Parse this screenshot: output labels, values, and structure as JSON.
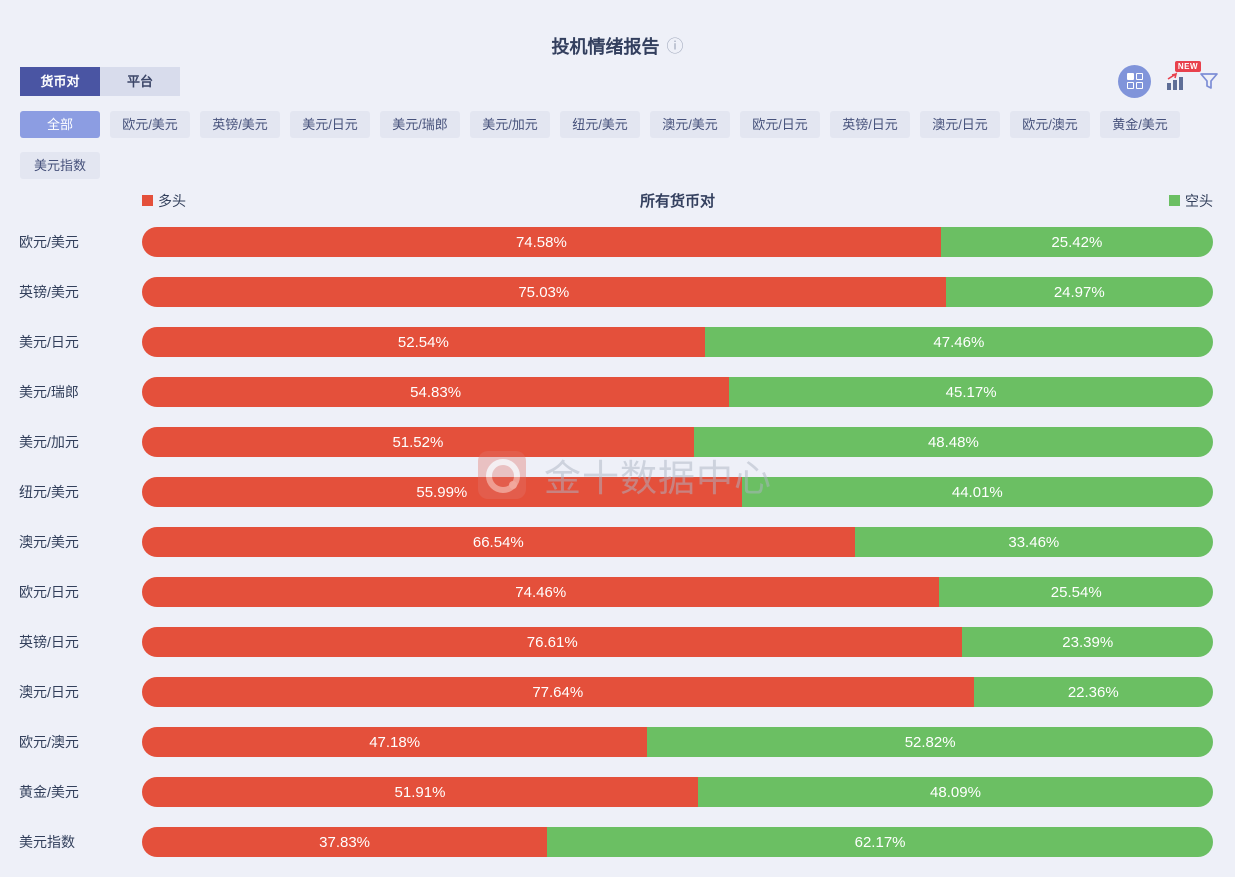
{
  "page": {
    "background": "#eef0f8"
  },
  "header": {
    "title": "投机情绪报告",
    "info_icon": "ⓘ"
  },
  "tabs": [
    {
      "label": "货币对",
      "active": true
    },
    {
      "label": "平台",
      "active": false
    }
  ],
  "toolbar": {
    "grid_icon": "layout-grid",
    "chart_style_icon": "bar-chart-trend",
    "new_badge": "NEW",
    "filter_icon": "funnel"
  },
  "filters": {
    "active": "全部",
    "row1": [
      "全部",
      "欧元/美元",
      "英镑/美元",
      "美元/日元",
      "美元/瑞郎",
      "美元/加元",
      "纽元/美元",
      "澳元/美元",
      "欧元/日元",
      "英镑/日元",
      "澳元/日元",
      "欧元/澳元",
      "黄金/美元"
    ],
    "row2": [
      "美元指数"
    ]
  },
  "legend": {
    "long": "多头",
    "short": "空头"
  },
  "watermark": "金十数据中心",
  "colors": {
    "long": "#e4503b",
    "short": "#6bbf63",
    "tab_active": "#4a55a3",
    "filter_active": "#8c9de2",
    "background": "#eef0f8",
    "text": "#333f5e",
    "new_badge": "#e8414d",
    "toolbar_circle": "#8094da"
  },
  "chart_data": {
    "type": "bar",
    "orientation": "horizontal",
    "stacked": true,
    "title": "所有货币对",
    "unit": "%",
    "xlim": [
      0,
      100
    ],
    "legend_position": "top",
    "categories": [
      "欧元/美元",
      "英镑/美元",
      "美元/日元",
      "美元/瑞郎",
      "美元/加元",
      "纽元/美元",
      "澳元/美元",
      "欧元/日元",
      "英镑/日元",
      "澳元/日元",
      "欧元/澳元",
      "黄金/美元",
      "美元指数"
    ],
    "series": [
      {
        "name": "多头",
        "color": "#e4503b",
        "values": [
          74.58,
          75.03,
          52.54,
          54.83,
          51.52,
          55.99,
          66.54,
          74.46,
          76.61,
          77.64,
          47.18,
          51.91,
          37.83
        ]
      },
      {
        "name": "空头",
        "color": "#6bbf63",
        "values": [
          25.42,
          24.97,
          47.46,
          45.17,
          48.48,
          44.01,
          33.46,
          25.54,
          23.39,
          22.36,
          52.82,
          48.09,
          62.17
        ]
      }
    ]
  }
}
